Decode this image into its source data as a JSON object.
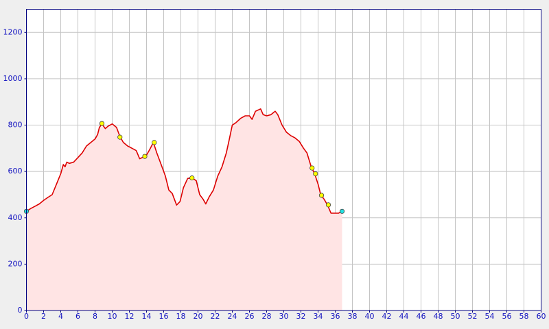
{
  "chart_data": {
    "type": "area",
    "x": [
      0,
      0.5,
      1,
      1.5,
      2,
      2.5,
      3,
      3.5,
      4,
      4.3,
      4.5,
      4.7,
      5,
      5.5,
      6,
      6.5,
      7,
      7.5,
      8,
      8.3,
      8.5,
      8.8,
      9.2,
      9.5,
      10,
      10.5,
      10.9,
      11.3,
      11.8,
      12.3,
      12.8,
      13.2,
      13.5,
      13.9,
      14.3,
      14.8,
      15.2,
      15.7,
      16.2,
      16.6,
      17,
      17.5,
      17.9,
      18.3,
      18.8,
      19.3,
      19.8,
      20.2,
      20.6,
      20.9,
      21.3,
      21.8,
      22.3,
      22.8,
      23.3,
      23.6,
      24,
      24.4,
      25,
      25.5,
      26,
      26.3,
      26.7,
      27.3,
      27.6,
      28,
      28.5,
      29,
      29.3,
      29.8,
      30.3,
      30.8,
      31.3,
      31.8,
      32.3,
      32.7,
      33.2,
      33.6,
      34,
      34.3,
      34.7,
      35.1,
      35.5,
      36,
      36.4,
      36.8
    ],
    "values": [
      428,
      440,
      450,
      460,
      475,
      488,
      500,
      545,
      590,
      630,
      620,
      640,
      635,
      640,
      660,
      680,
      710,
      725,
      740,
      760,
      790,
      805,
      785,
      795,
      805,
      790,
      750,
      725,
      710,
      700,
      690,
      655,
      660,
      665,
      690,
      725,
      680,
      630,
      580,
      520,
      505,
      455,
      470,
      530,
      570,
      572,
      560,
      500,
      480,
      460,
      490,
      520,
      580,
      620,
      680,
      730,
      800,
      810,
      830,
      840,
      840,
      825,
      860,
      870,
      845,
      840,
      845,
      860,
      845,
      800,
      770,
      755,
      745,
      730,
      700,
      680,
      620,
      590,
      545,
      500,
      480,
      455,
      420,
      420,
      420,
      430
    ],
    "color": "#dd0000",
    "fill": "#ffe4e4",
    "waypoints": {
      "x": [
        8.8,
        10.9,
        13.8,
        14.9,
        19.3,
        33.3,
        33.7,
        34.4,
        35.2
      ],
      "values": [
        807,
        748,
        665,
        725,
        572,
        615,
        590,
        497,
        456
      ],
      "color": "#ffff00"
    },
    "endpoints": {
      "x": [
        0,
        36.8
      ],
      "values": [
        428,
        428
      ],
      "color": "#22e0e0"
    },
    "xlim": [
      0,
      60
    ],
    "xticks": [
      0,
      2,
      4,
      6,
      8,
      10,
      12,
      14,
      16,
      18,
      20,
      22,
      24,
      26,
      28,
      30,
      32,
      34,
      36,
      38,
      40,
      42,
      44,
      46,
      48,
      50,
      52,
      54,
      56,
      58,
      60
    ],
    "ylim": [
      0,
      1300
    ],
    "yticks": [
      0,
      200,
      400,
      600,
      800,
      1000,
      1200
    ],
    "grid": true
  }
}
